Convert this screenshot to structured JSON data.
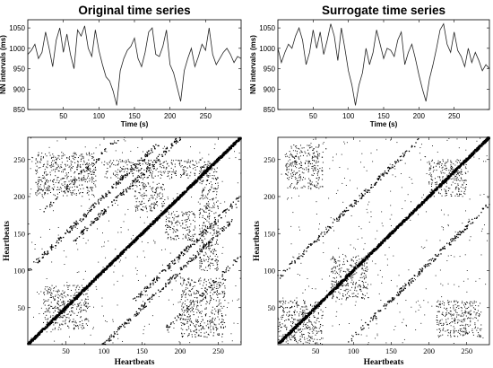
{
  "chart_data": [
    {
      "type": "line",
      "panel": "top-left",
      "title": "Original time series",
      "xlabel": "Time (s)",
      "ylabel": "NN intervals (ms)",
      "xlim": [
        0,
        300
      ],
      "ylim": [
        850,
        1070
      ],
      "xticks": [
        50,
        100,
        150,
        200,
        250
      ],
      "yticks": [
        850,
        900,
        950,
        1000,
        1050
      ],
      "grid": false,
      "series": [
        {
          "x": [
            0,
            5,
            10,
            15,
            20,
            25,
            30,
            35,
            40,
            45,
            50,
            55,
            60,
            65,
            70,
            75,
            80,
            85,
            90,
            95,
            100,
            105,
            110,
            115,
            120,
            125,
            130,
            135,
            140,
            145,
            150,
            155,
            160,
            165,
            170,
            175,
            180,
            185,
            190,
            195,
            200,
            205,
            210,
            215,
            220,
            225,
            230,
            235,
            240,
            245,
            250,
            255,
            260,
            265,
            270,
            275,
            280,
            285,
            290,
            295,
            300
          ],
          "y": [
            985,
            995,
            1010,
            975,
            990,
            1040,
            1000,
            955,
            1020,
            1050,
            990,
            1035,
            985,
            950,
            1045,
            1030,
            1055,
            1000,
            980,
            1045,
            995,
            960,
            930,
            920,
            895,
            860,
            945,
            975,
            995,
            1005,
            1025,
            975,
            955,
            990,
            1040,
            1050,
            985,
            980,
            1005,
            1045,
            960,
            940,
            905,
            870,
            945,
            975,
            1000,
            955,
            980,
            1010,
            995,
            1050,
            985,
            960,
            975,
            990,
            1000,
            985,
            965,
            980,
            975
          ]
        }
      ]
    },
    {
      "type": "line",
      "panel": "top-right",
      "title": "Surrogate time series",
      "xlabel": "Time (s)",
      "ylabel": "NN intervals (ms)",
      "xlim": [
        0,
        300
      ],
      "ylim": [
        850,
        1070
      ],
      "xticks": [
        50,
        100,
        150,
        200,
        250
      ],
      "yticks": [
        850,
        900,
        950,
        1000,
        1050
      ],
      "grid": false,
      "series": [
        {
          "x": [
            0,
            5,
            10,
            15,
            20,
            25,
            30,
            35,
            40,
            45,
            50,
            55,
            60,
            65,
            70,
            75,
            80,
            85,
            90,
            95,
            100,
            105,
            110,
            115,
            120,
            125,
            130,
            135,
            140,
            145,
            150,
            155,
            160,
            165,
            170,
            175,
            180,
            185,
            190,
            195,
            200,
            205,
            210,
            215,
            220,
            225,
            230,
            235,
            240,
            245,
            250,
            255,
            260,
            265,
            270,
            275,
            280,
            285,
            290,
            295,
            300
          ],
          "y": [
            1000,
            965,
            990,
            1010,
            1000,
            1030,
            1050,
            1020,
            960,
            990,
            1045,
            1000,
            1040,
            985,
            1020,
            1060,
            1030,
            970,
            1050,
            1000,
            945,
            910,
            860,
            910,
            940,
            1000,
            960,
            990,
            1045,
            1010,
            975,
            1000,
            995,
            980,
            1020,
            1040,
            960,
            990,
            1010,
            975,
            935,
            900,
            870,
            925,
            960,
            1000,
            1045,
            1060,
            1010,
            990,
            1040,
            995,
            980,
            955,
            1000,
            965,
            990,
            970,
            945,
            960,
            950
          ]
        }
      ]
    },
    {
      "type": "scatter",
      "panel": "bottom-left",
      "subtype": "recurrence-plot",
      "xlabel": "Heartbeats",
      "ylabel": "Heartbeats",
      "xlim": [
        0,
        280
      ],
      "ylim": [
        0,
        280
      ],
      "xticks": [
        50,
        100,
        150,
        200,
        250
      ],
      "yticks": [
        50,
        100,
        150,
        200,
        250
      ],
      "grid": false,
      "diagonal_lines": [
        {
          "x0": 0,
          "y0": 0,
          "x1": 280,
          "y1": 280,
          "density": "dense"
        },
        {
          "x0": 100,
          "y0": 0,
          "x1": 270,
          "y1": 170,
          "density": "medium"
        },
        {
          "x0": 0,
          "y0": 100,
          "x1": 170,
          "y1": 270,
          "density": "medium"
        },
        {
          "x0": 140,
          "y0": 60,
          "x1": 280,
          "y1": 200,
          "density": "medium"
        },
        {
          "x0": 60,
          "y0": 140,
          "x1": 200,
          "y1": 280,
          "density": "medium"
        },
        {
          "x0": 180,
          "y0": 20,
          "x1": 280,
          "y1": 120,
          "density": "sparse"
        },
        {
          "x0": 20,
          "y0": 180,
          "x1": 120,
          "y1": 280,
          "density": "sparse"
        }
      ],
      "clusters": [
        {
          "x": [
            20,
            80
          ],
          "y": [
            20,
            80
          ]
        },
        {
          "x": [
            200,
            260
          ],
          "y": [
            10,
            90
          ]
        },
        {
          "x": [
            10,
            90
          ],
          "y": [
            200,
            260
          ]
        },
        {
          "x": [
            225,
            250
          ],
          "y": [
            100,
            240
          ]
        },
        {
          "x": [
            100,
            240
          ],
          "y": [
            225,
            250
          ]
        },
        {
          "x": [
            180,
            220
          ],
          "y": [
            140,
            180
          ]
        },
        {
          "x": [
            140,
            180
          ],
          "y": [
            180,
            220
          ]
        }
      ]
    },
    {
      "type": "scatter",
      "panel": "bottom-right",
      "subtype": "recurrence-plot",
      "xlabel": "Heartbeats",
      "ylabel": "Heartbeats",
      "xlim": [
        0,
        280
      ],
      "ylim": [
        0,
        280
      ],
      "xticks": [
        50,
        100,
        150,
        200,
        250
      ],
      "yticks": [
        50,
        100,
        150,
        200,
        250
      ],
      "grid": false,
      "diagonal_lines": [
        {
          "x0": 0,
          "y0": 0,
          "x1": 280,
          "y1": 280,
          "density": "dense"
        },
        {
          "x0": 90,
          "y0": 0,
          "x1": 250,
          "y1": 160,
          "density": "sparse"
        },
        {
          "x0": 0,
          "y0": 90,
          "x1": 160,
          "y1": 250,
          "density": "sparse"
        },
        {
          "x0": 130,
          "y0": 40,
          "x1": 280,
          "y1": 190,
          "density": "sparse"
        },
        {
          "x0": 40,
          "y0": 130,
          "x1": 190,
          "y1": 280,
          "density": "sparse"
        }
      ],
      "clusters": [
        {
          "x": [
            0,
            60
          ],
          "y": [
            0,
            60
          ]
        },
        {
          "x": [
            70,
            120
          ],
          "y": [
            60,
            120
          ]
        },
        {
          "x": [
            10,
            60
          ],
          "y": [
            210,
            270
          ]
        },
        {
          "x": [
            210,
            270
          ],
          "y": [
            10,
            60
          ]
        },
        {
          "x": [
            200,
            250
          ],
          "y": [
            200,
            250
          ]
        }
      ]
    }
  ]
}
